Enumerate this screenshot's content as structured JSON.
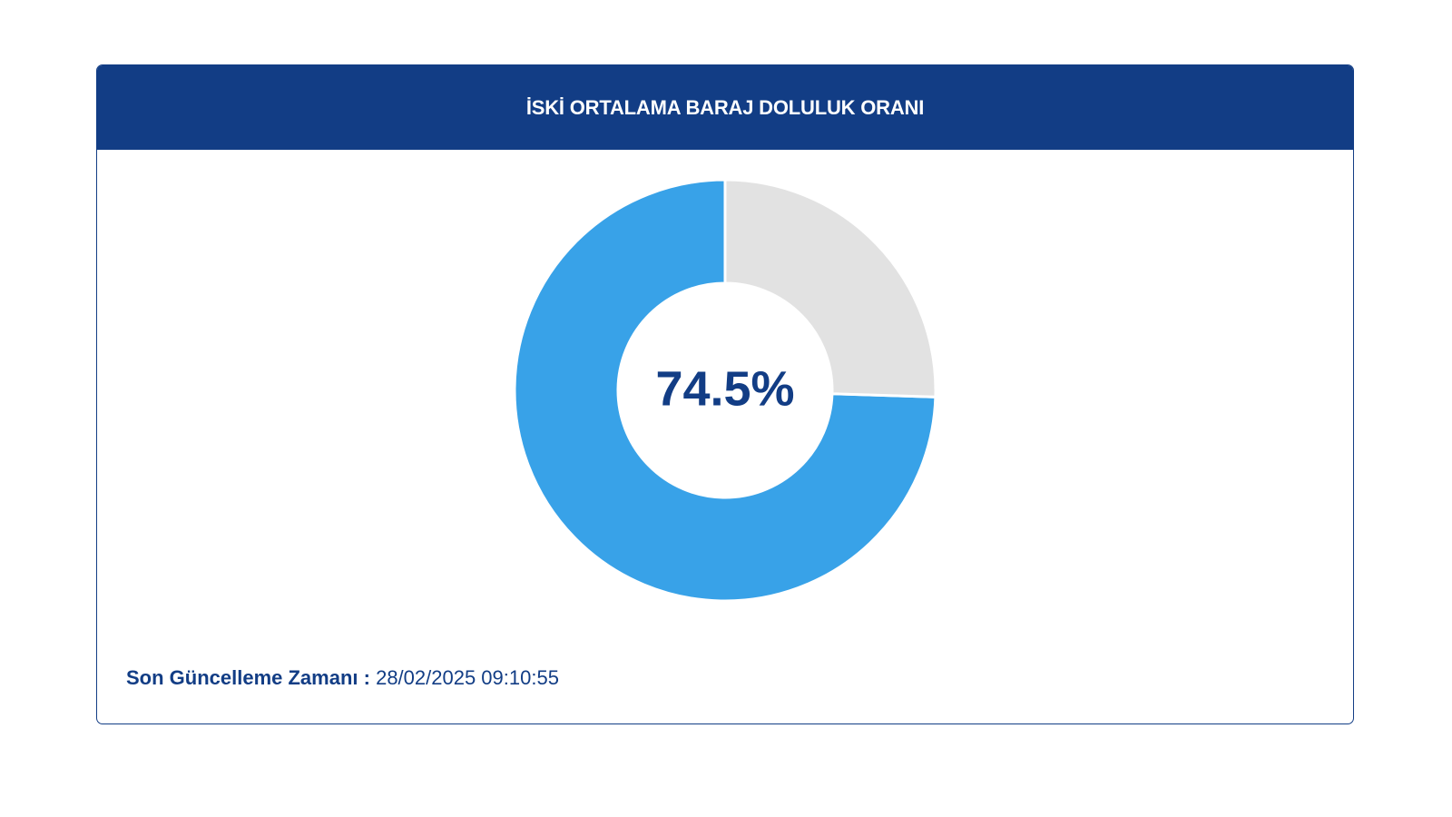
{
  "card": {
    "title": "İSKİ ORTALAMA BARAJ DOLULUK ORANI"
  },
  "footer": {
    "label": "Son Güncelleme Zamanı :",
    "value": "28/02/2025 09:10:55"
  },
  "colors": {
    "header_bg": "#123d85",
    "filled": "#38a2e8",
    "empty": "#e2e2e2",
    "center_text": "#123d85"
  },
  "chart_data": {
    "type": "pie",
    "center_label": "74.5%",
    "slices": [
      {
        "value": 74.5,
        "color": "#38a2e8"
      },
      {
        "value": 25.5,
        "color": "#e2e2e2"
      }
    ]
  }
}
